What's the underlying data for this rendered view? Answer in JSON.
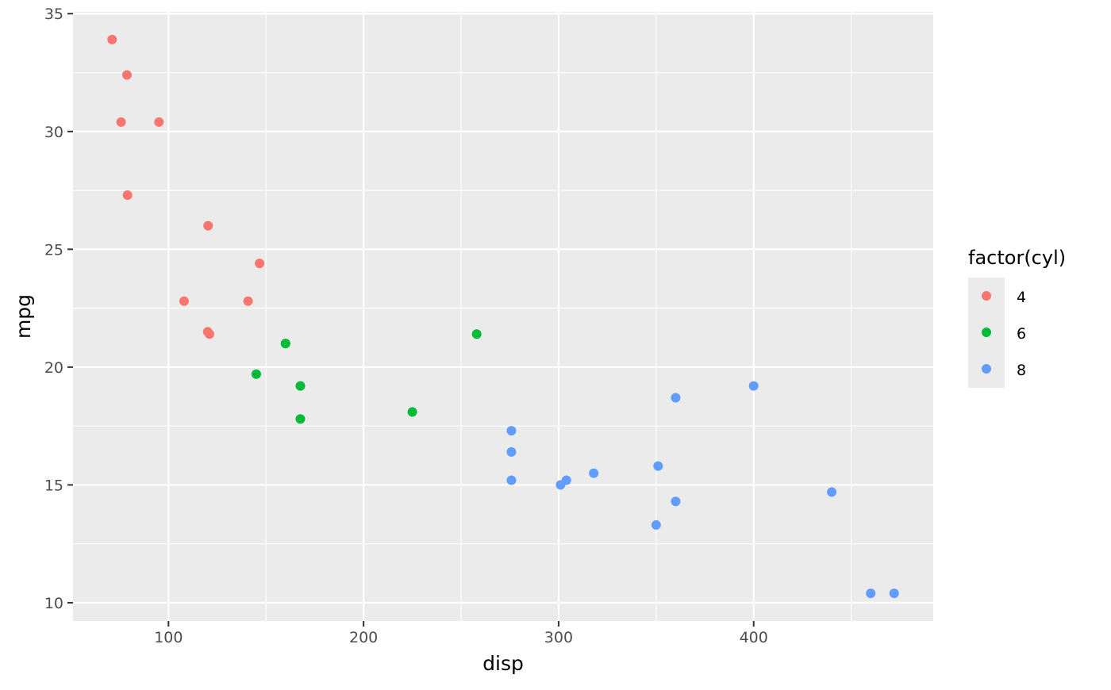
{
  "chart_data": {
    "type": "scatter",
    "title": "",
    "xlabel": "disp",
    "ylabel": "mpg",
    "xlim": [
      51.05,
      492.05
    ],
    "ylim": [
      9.225,
      35.075
    ],
    "x_ticks": [
      100,
      200,
      300,
      400
    ],
    "y_ticks": [
      10,
      15,
      20,
      25,
      30,
      35
    ],
    "grid": true,
    "legend": {
      "title": "factor(cyl)",
      "placement": "right",
      "entries": [
        {
          "label": "4",
          "color": "#F8766D"
        },
        {
          "label": "6",
          "color": "#00BA38"
        },
        {
          "label": "8",
          "color": "#619CFF"
        }
      ]
    },
    "series": [
      {
        "name": "4",
        "color": "#F8766D",
        "points": [
          [
            108,
            22.8
          ],
          [
            146.7,
            24.4
          ],
          [
            140.8,
            22.8
          ],
          [
            78.7,
            32.4
          ],
          [
            75.7,
            30.4
          ],
          [
            71.1,
            33.9
          ],
          [
            120.1,
            21.5
          ],
          [
            79,
            27.3
          ],
          [
            120.3,
            26
          ],
          [
            95.1,
            30.4
          ],
          [
            121,
            21.4
          ]
        ]
      },
      {
        "name": "6",
        "color": "#00BA38",
        "points": [
          [
            160,
            21
          ],
          [
            160,
            21
          ],
          [
            258,
            21.4
          ],
          [
            225,
            18.1
          ],
          [
            167.6,
            19.2
          ],
          [
            167.6,
            17.8
          ],
          [
            145,
            19.7
          ]
        ]
      },
      {
        "name": "8",
        "color": "#619CFF",
        "points": [
          [
            360,
            18.7
          ],
          [
            360,
            14.3
          ],
          [
            275.8,
            16.4
          ],
          [
            275.8,
            17.3
          ],
          [
            275.8,
            15.2
          ],
          [
            472,
            10.4
          ],
          [
            460,
            10.4
          ],
          [
            440,
            14.7
          ],
          [
            318,
            15.5
          ],
          [
            304,
            15.2
          ],
          [
            350,
            13.3
          ],
          [
            400,
            19.2
          ],
          [
            351,
            15.8
          ],
          [
            301,
            15
          ]
        ]
      }
    ]
  }
}
